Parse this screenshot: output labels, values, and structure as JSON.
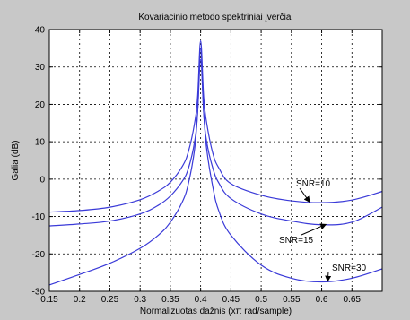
{
  "chart_data": {
    "type": "line",
    "title": "Kovariacinio metodo spektriniai įverčiai",
    "xlabel": "Normalizuotas dažnis (xπ rad/sample)",
    "ylabel": "Galia (dB)",
    "xlim": [
      0.15,
      0.7
    ],
    "ylim": [
      -30,
      40
    ],
    "xticks": [
      "0.15",
      "0.2",
      "0.25",
      "0.3",
      "0.35",
      "0.4",
      "0.45",
      "0.5",
      "0.55",
      "0.6",
      "0.65"
    ],
    "yticks": [
      "-30",
      "-20",
      "-10",
      "0",
      "10",
      "20",
      "30",
      "40"
    ],
    "grid": true,
    "line_color": "#3a3ad8",
    "series": [
      {
        "name": "SNR=10",
        "x": [
          0.15,
          0.2,
          0.25,
          0.3,
          0.33,
          0.35,
          0.37,
          0.38,
          0.39,
          0.395,
          0.4,
          0.405,
          0.41,
          0.42,
          0.43,
          0.45,
          0.5,
          0.55,
          0.6,
          0.65,
          0.7
        ],
        "y": [
          -8.8,
          -8.4,
          -7.5,
          -5.5,
          -3.2,
          -0.8,
          3.5,
          7.5,
          15.0,
          22.0,
          37.0,
          22.0,
          15.0,
          7.0,
          3.0,
          -1.2,
          -4.3,
          -5.8,
          -6.3,
          -5.6,
          -3.3
        ]
      },
      {
        "name": "SNR=15",
        "x": [
          0.15,
          0.2,
          0.25,
          0.3,
          0.33,
          0.35,
          0.37,
          0.38,
          0.39,
          0.395,
          0.4,
          0.405,
          0.41,
          0.42,
          0.43,
          0.45,
          0.5,
          0.55,
          0.6,
          0.65,
          0.7
        ],
        "y": [
          -12.5,
          -12.0,
          -11.2,
          -9.3,
          -7.0,
          -4.5,
          -0.5,
          3.0,
          10.0,
          18.0,
          35.0,
          18.0,
          10.0,
          3.0,
          -1.0,
          -5.2,
          -9.3,
          -11.2,
          -12.2,
          -11.5,
          -7.5
        ]
      },
      {
        "name": "SNR=30",
        "x": [
          0.15,
          0.2,
          0.25,
          0.3,
          0.33,
          0.35,
          0.37,
          0.38,
          0.39,
          0.395,
          0.4,
          0.405,
          0.41,
          0.42,
          0.43,
          0.45,
          0.5,
          0.55,
          0.6,
          0.65,
          0.7
        ],
        "y": [
          -28.3,
          -25.5,
          -22.5,
          -18.5,
          -15.0,
          -11.5,
          -6.0,
          -1.0,
          8.0,
          18.0,
          32.0,
          18.0,
          8.0,
          -2.0,
          -8.5,
          -15.0,
          -23.0,
          -26.5,
          -27.5,
          -26.5,
          -24.0
        ]
      }
    ],
    "annotations": [
      {
        "text": "SNR=10",
        "series": "SNR=10",
        "at_x": 0.58
      },
      {
        "text": "SNR=15",
        "series": "SNR=15",
        "at_x": 0.607
      },
      {
        "text": "SNR=30",
        "series": "SNR=30",
        "at_x": 0.61
      }
    ]
  }
}
